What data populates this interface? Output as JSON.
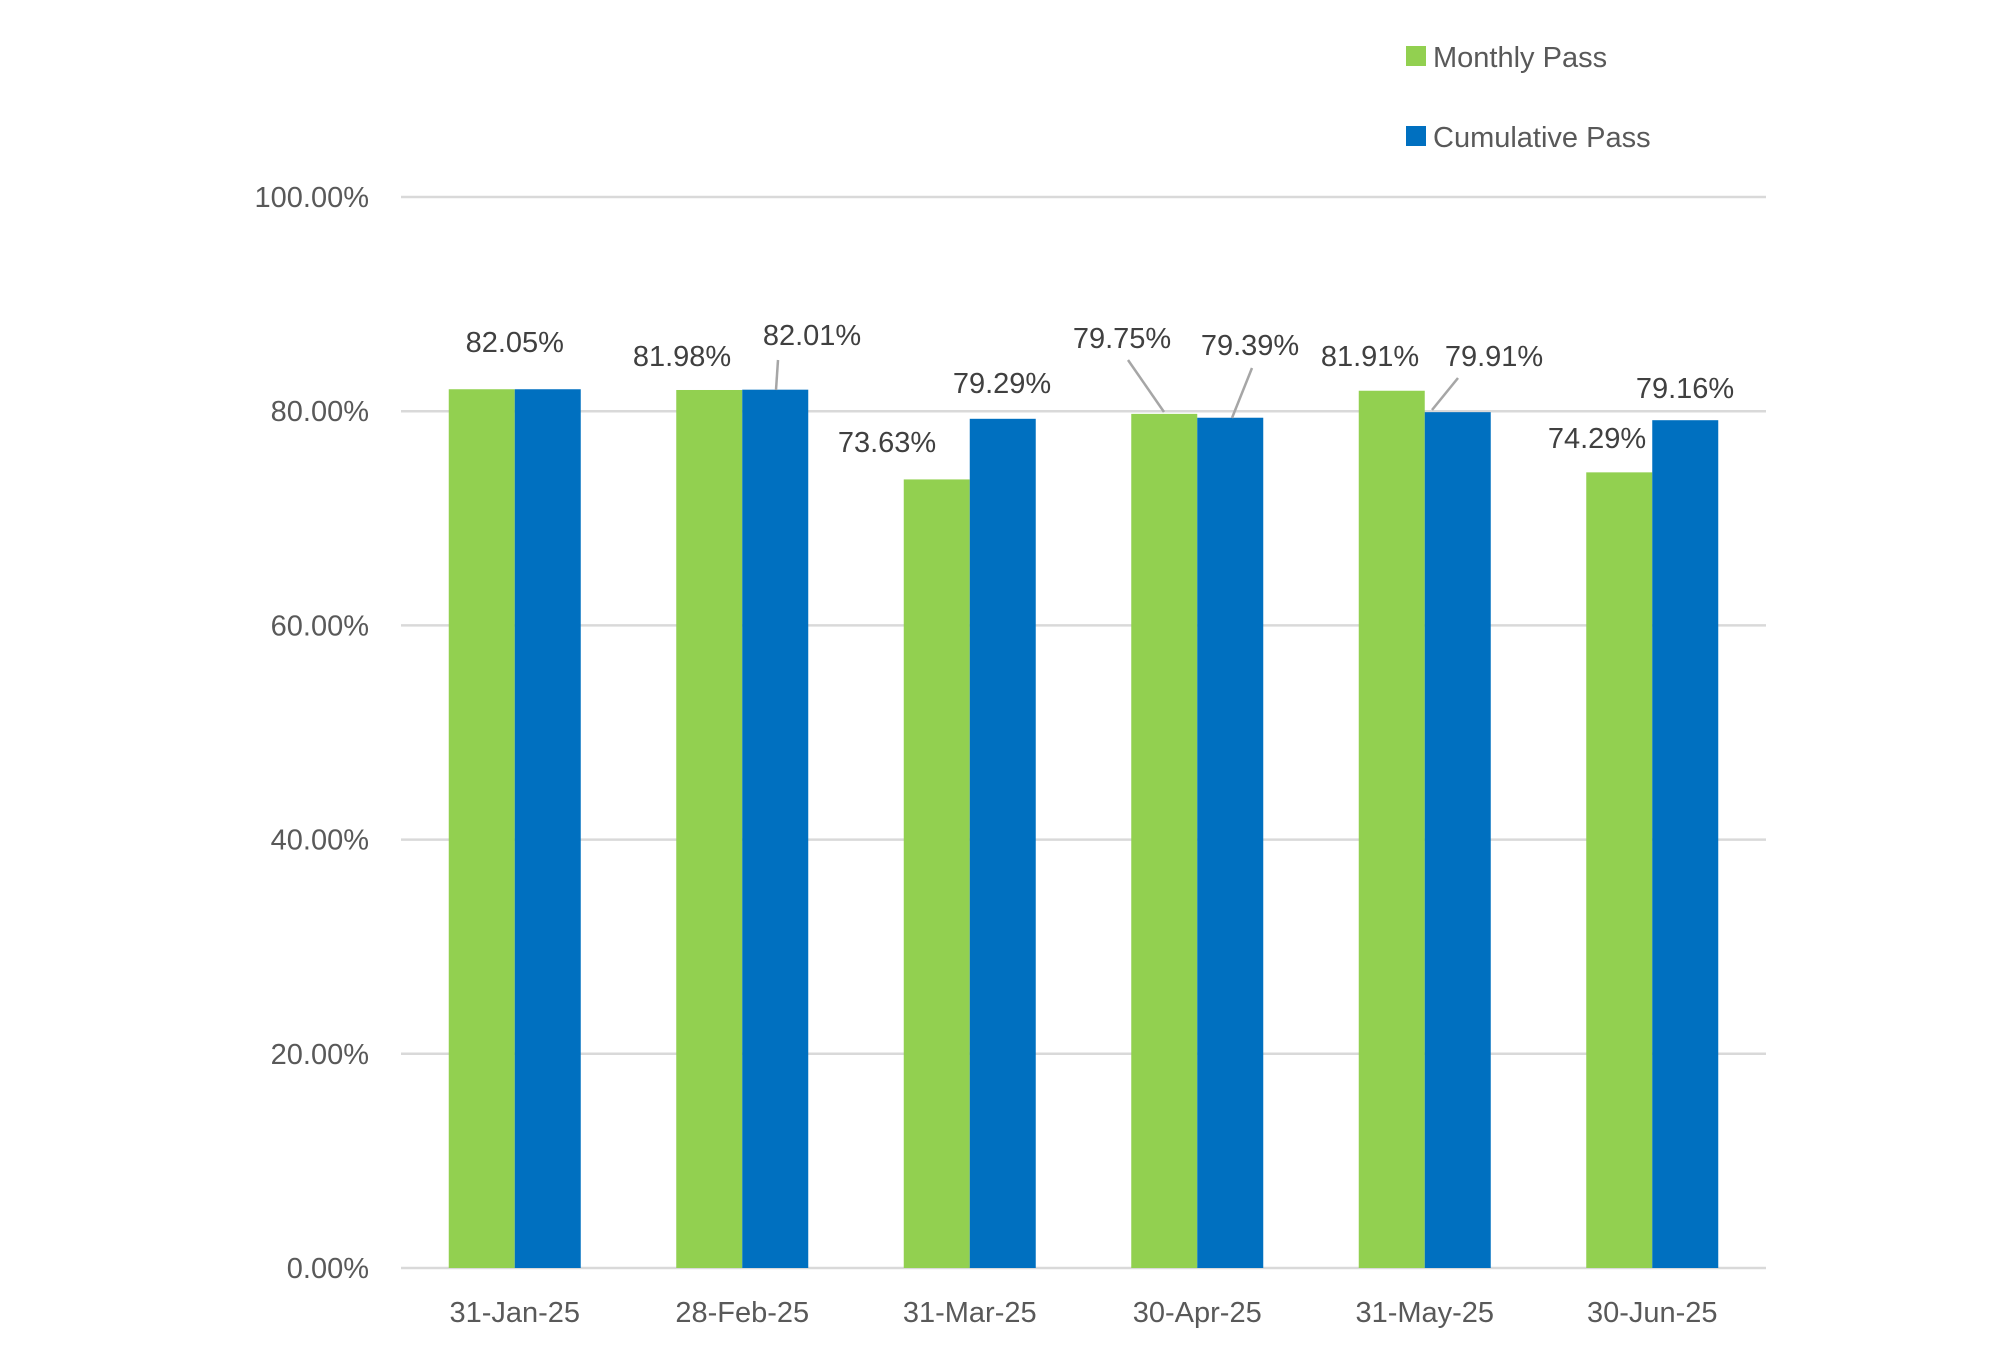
{
  "chart_data": {
    "type": "bar",
    "title": "",
    "xlabel": "",
    "ylabel": "",
    "categories": [
      "31-Jan-25",
      "28-Feb-25",
      "31-Mar-25",
      "30-Apr-25",
      "31-May-25",
      "30-Jun-25"
    ],
    "series": [
      {
        "name": "Monthly Pass",
        "color": "#92d050",
        "values": [
          82.05,
          81.98,
          73.63,
          79.75,
          81.91,
          74.29
        ],
        "labels": [
          "",
          "81.98%",
          "73.63%",
          "79.75%",
          "81.91%",
          "74.29%"
        ]
      },
      {
        "name": "Cumulative Pass",
        "color": "#0070c0",
        "values": [
          82.05,
          82.01,
          79.29,
          79.39,
          79.91,
          79.16
        ],
        "labels": [
          "82.05%",
          "82.01%",
          "79.29%",
          "79.39%",
          "79.91%",
          "79.16%"
        ]
      }
    ],
    "ylim": [
      0,
      100
    ],
    "yticks": [
      0,
      20,
      40,
      60,
      80,
      100
    ],
    "ytick_labels": [
      "0.00%",
      "20.00%",
      "40.00%",
      "60.00%",
      "80.00%",
      "100.00%"
    ],
    "grid": true,
    "legend": "top-right"
  }
}
